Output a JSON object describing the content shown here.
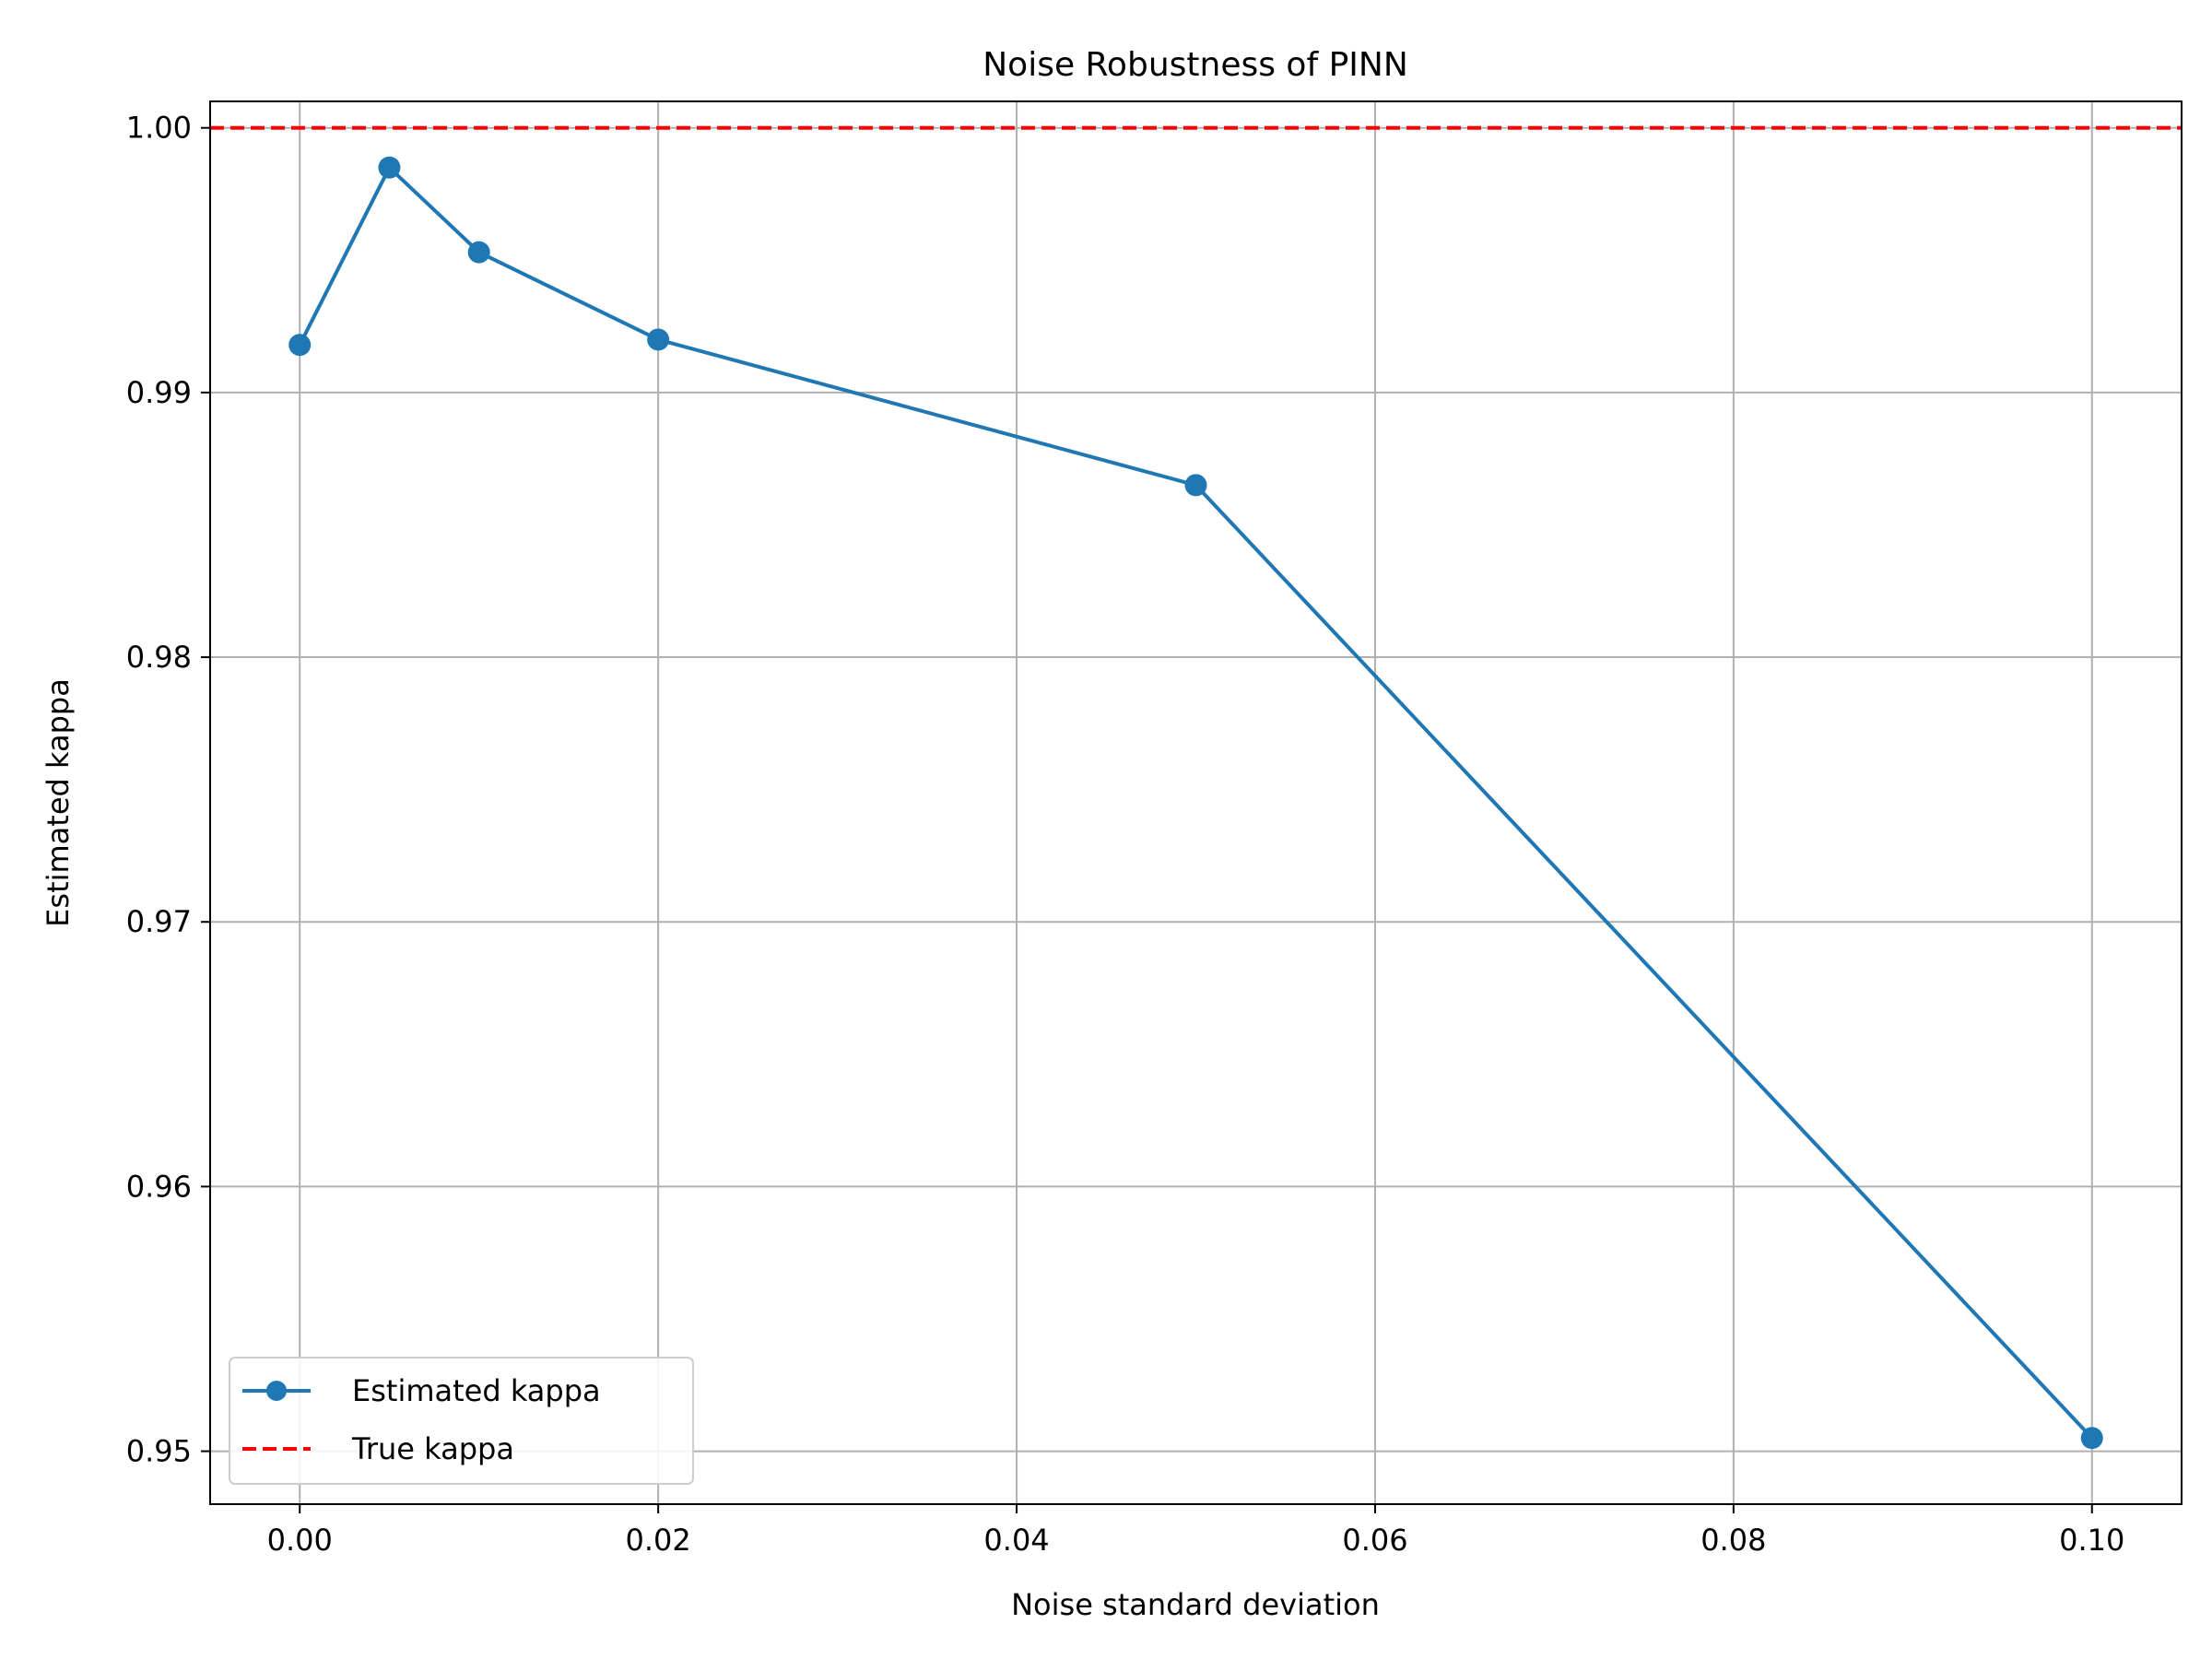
{
  "chart_data": {
    "type": "line",
    "title": "Noise Robustness of PINN",
    "xlabel": "Noise standard deviation",
    "ylabel": "Estimated kappa",
    "xlim": [
      -0.005,
      0.105
    ],
    "ylim": [
      0.948,
      1.001
    ],
    "xticks": [
      0.0,
      0.02,
      0.04,
      0.06,
      0.08,
      0.1
    ],
    "xtick_labels": [
      "0.00",
      "0.02",
      "0.04",
      "0.06",
      "0.08",
      "0.10"
    ],
    "yticks": [
      0.95,
      0.96,
      0.97,
      0.98,
      0.99,
      1.0
    ],
    "ytick_labels": [
      "0.95",
      "0.96",
      "0.97",
      "0.98",
      "0.99",
      "1.00"
    ],
    "grid": true,
    "legend_position": "lower-left",
    "series": [
      {
        "name": "Estimated kappa",
        "style": "solid-with-markers",
        "color": "#1f77b4",
        "x": [
          0.0,
          0.005,
          0.01,
          0.02,
          0.05,
          0.1
        ],
        "y": [
          0.9918,
          0.9985,
          0.9953,
          0.992,
          0.9865,
          0.9505
        ]
      }
    ],
    "reference_lines": [
      {
        "name": "True kappa",
        "orientation": "horizontal",
        "value": 1.0,
        "style": "dashed",
        "color": "#ff0000"
      }
    ]
  }
}
